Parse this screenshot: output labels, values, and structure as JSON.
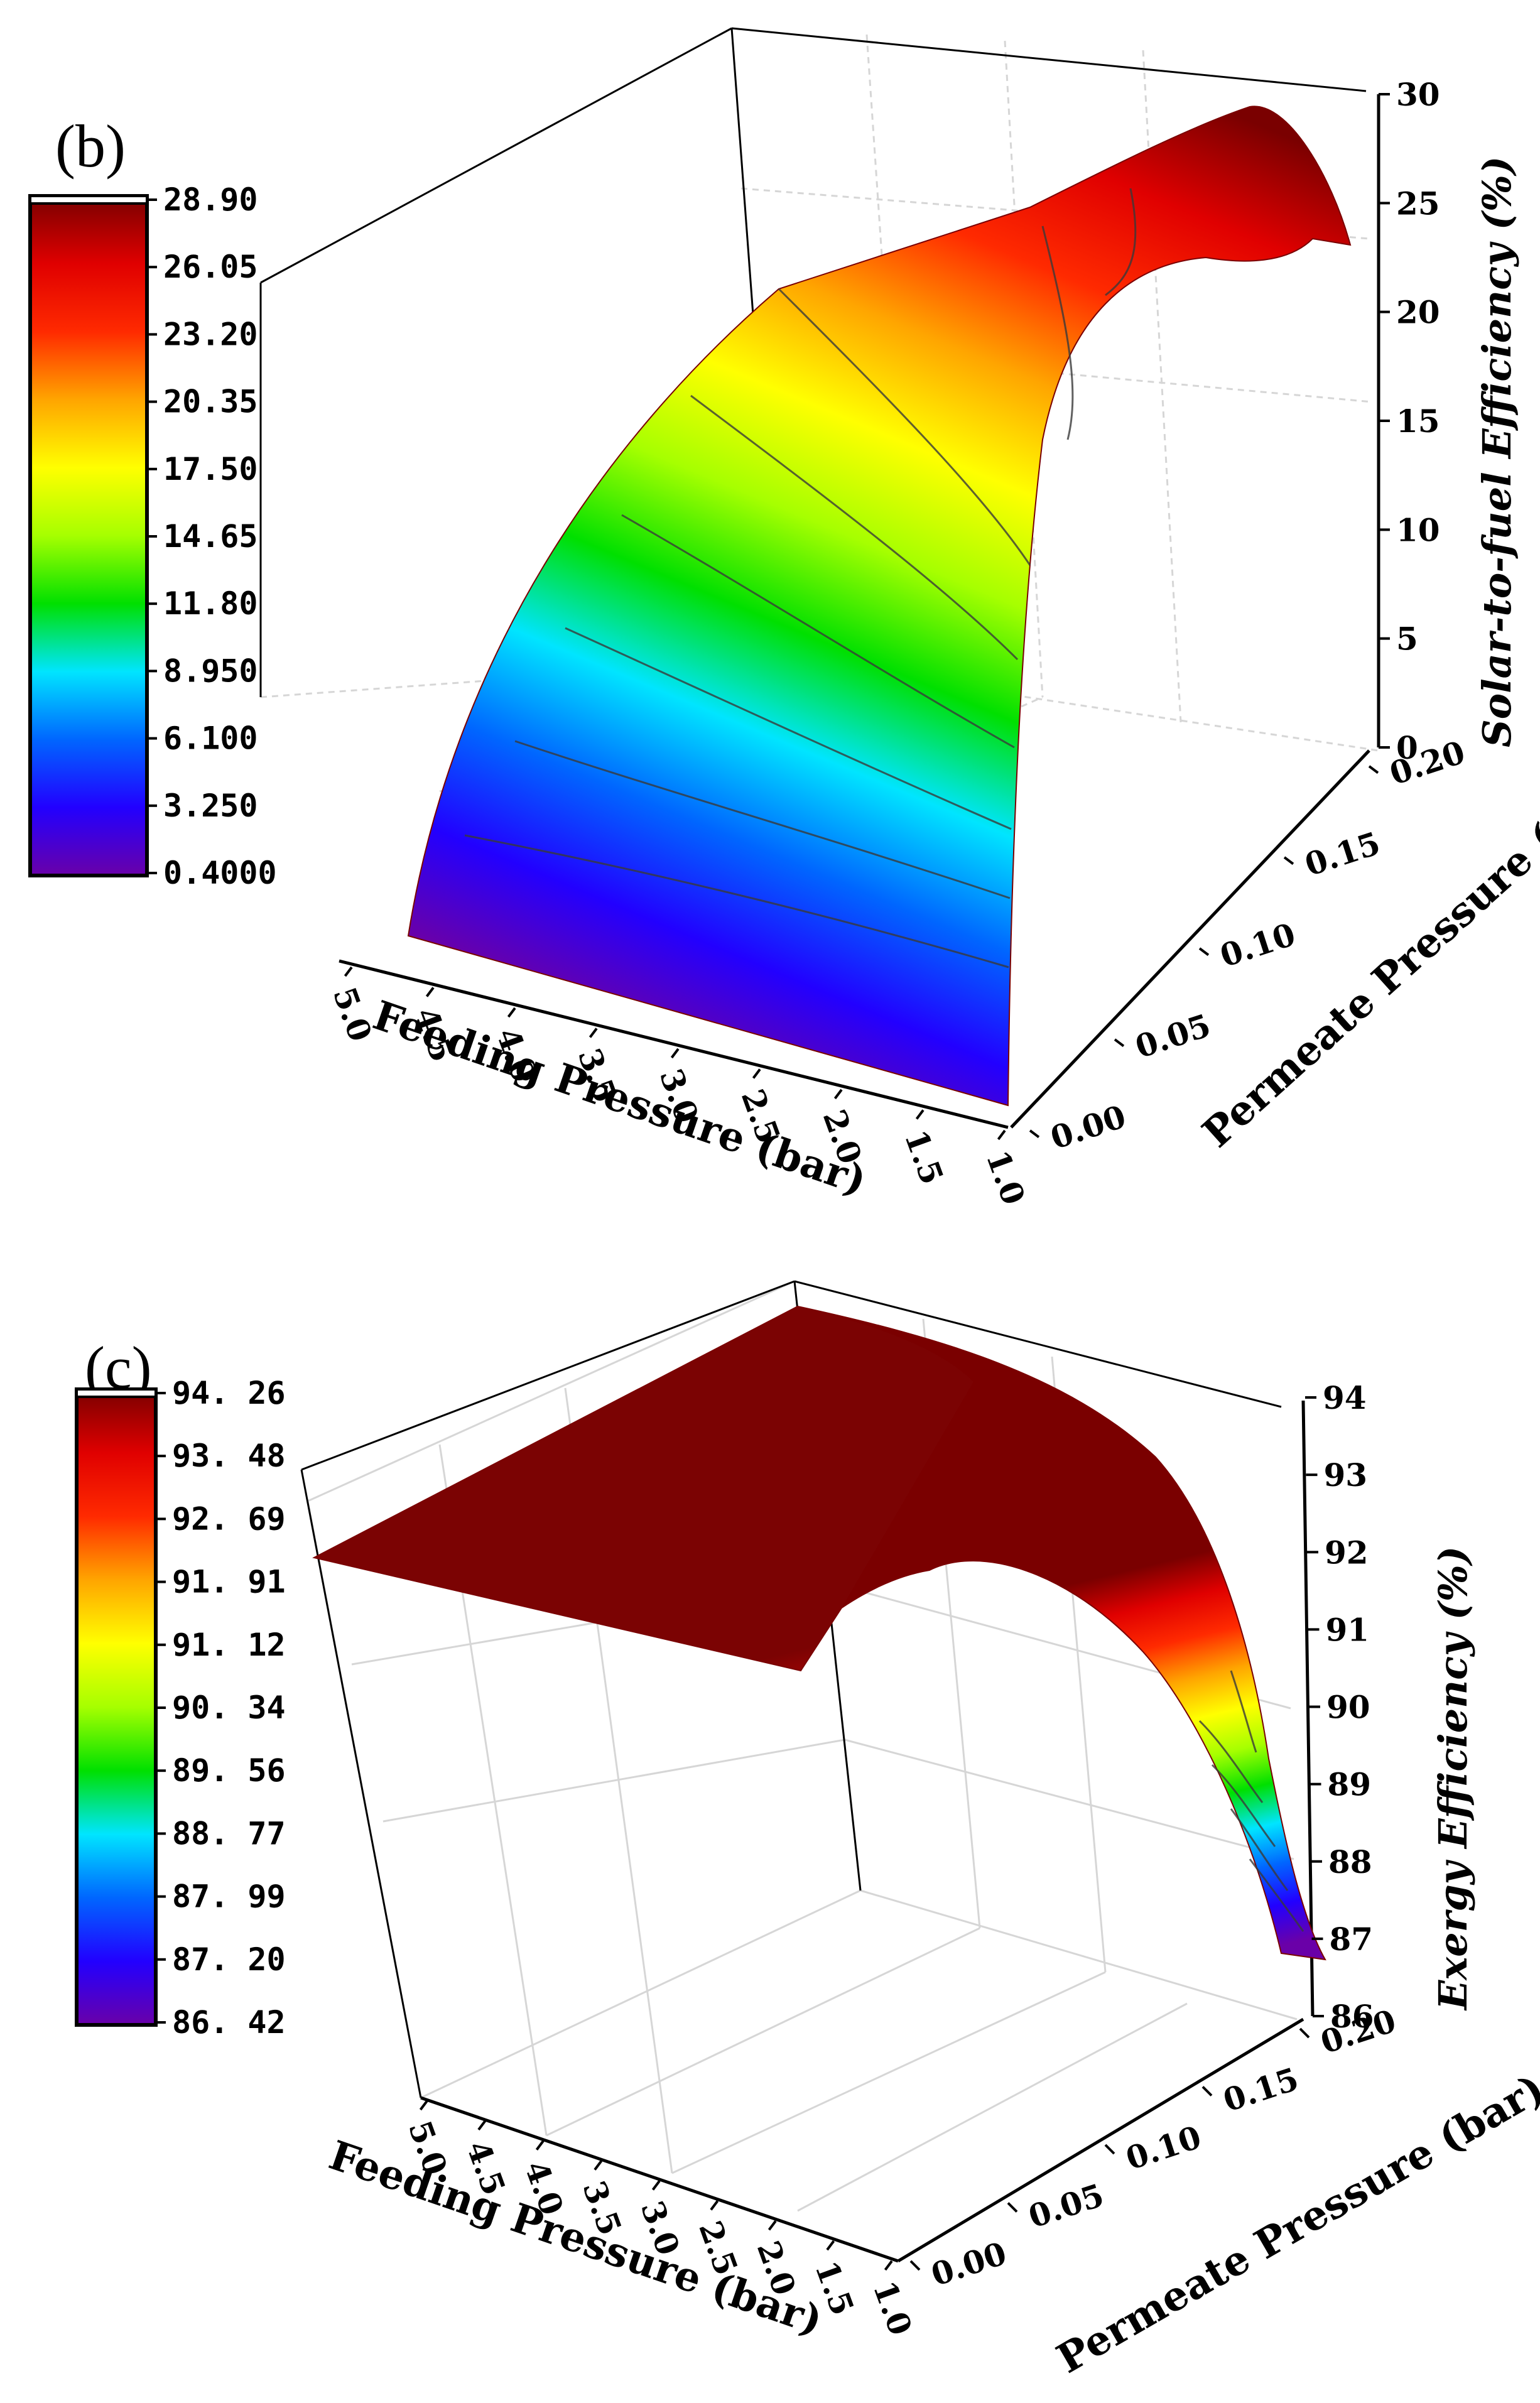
{
  "chart_data": [
    {
      "type": "surface3d",
      "panel_label": "(b)",
      "title": "",
      "xlabel": "Feeding Pressure (bar)",
      "ylabel": "Permeate Pressure (bar)",
      "zlabel": "Solar-to-fuel Efficiency (%)",
      "x_ticks": [
        "5.0",
        "4.5",
        "4.0",
        "3.5",
        "3.0",
        "2.5",
        "2.0",
        "1.5",
        "1.0"
      ],
      "y_ticks": [
        "0.00",
        "0.05",
        "0.10",
        "0.15",
        "0.20"
      ],
      "z_ticks": [
        "0",
        "5",
        "10",
        "15",
        "20",
        "25",
        "30"
      ],
      "xlim": [
        1.0,
        5.0
      ],
      "ylim": [
        0.0,
        0.2
      ],
      "zlim": [
        0,
        30
      ],
      "colorbar_ticks": [
        "28.90",
        "26.05",
        "23.20",
        "20.35",
        "17.50",
        "14.65",
        "11.80",
        "8.950",
        "6.100",
        "3.250",
        "0.4000"
      ],
      "colorbar_range": [
        0.4,
        28.9
      ],
      "colors": [
        "#6a00a8",
        "#2200ff",
        "#0066ff",
        "#00e5ff",
        "#00e000",
        "#a6ff00",
        "#ffff00",
        "#ffa500",
        "#ff2a00",
        "#e00000",
        "#7a0000"
      ],
      "surface": {
        "corners": [
          {
            "feed": 5.0,
            "perm": 0.0,
            "value": 0.4
          },
          {
            "feed": 1.0,
            "perm": 0.0,
            "value": 0.6
          },
          {
            "feed": 5.0,
            "perm": 0.2,
            "value": 23.5
          },
          {
            "feed": 1.0,
            "perm": 0.2,
            "value": 22.5
          }
        ],
        "peak": {
          "feed": 1.5,
          "perm": 0.2,
          "value": 28.9
        }
      }
    },
    {
      "type": "surface3d",
      "panel_label": "(c)",
      "title": "",
      "xlabel": "Feeding Pressure (bar)",
      "ylabel": "Permeate Pressure (bar)",
      "zlabel": "Exergy Efficiency (%)",
      "x_ticks": [
        "5.0",
        "4.5",
        "4.0",
        "3.5",
        "3.0",
        "2.5",
        "2.0",
        "1.5",
        "1.0"
      ],
      "y_ticks": [
        "0.00",
        "0.05",
        "0.10",
        "0.15",
        "0.20"
      ],
      "z_ticks": [
        "86",
        "87",
        "88",
        "89",
        "90",
        "91",
        "92",
        "93",
        "94"
      ],
      "xlim": [
        1.0,
        5.0
      ],
      "ylim": [
        0.0,
        0.2
      ],
      "zlim": [
        86,
        94.3
      ],
      "colorbar_ticks": [
        "94. 26",
        "93. 48",
        "92. 69",
        "91. 91",
        "91. 12",
        "90. 34",
        "89. 56",
        "88. 77",
        "87. 99",
        "87. 20",
        "86. 42"
      ],
      "colorbar_range": [
        86.42,
        94.26
      ],
      "colors": [
        "#6a00a8",
        "#2200ff",
        "#0066ff",
        "#00e5ff",
        "#00e000",
        "#a6ff00",
        "#ffff00",
        "#ffa500",
        "#ff2a00",
        "#e00000",
        "#7a0000"
      ],
      "surface": {
        "corners": [
          {
            "feed": 5.0,
            "perm": 0.0,
            "value": 93.8
          },
          {
            "feed": 1.0,
            "perm": 0.0,
            "value": 86.5
          },
          {
            "feed": 5.0,
            "perm": 0.2,
            "value": 94.2
          },
          {
            "feed": 1.0,
            "perm": 0.2,
            "value": 93.9
          }
        ]
      }
    }
  ]
}
